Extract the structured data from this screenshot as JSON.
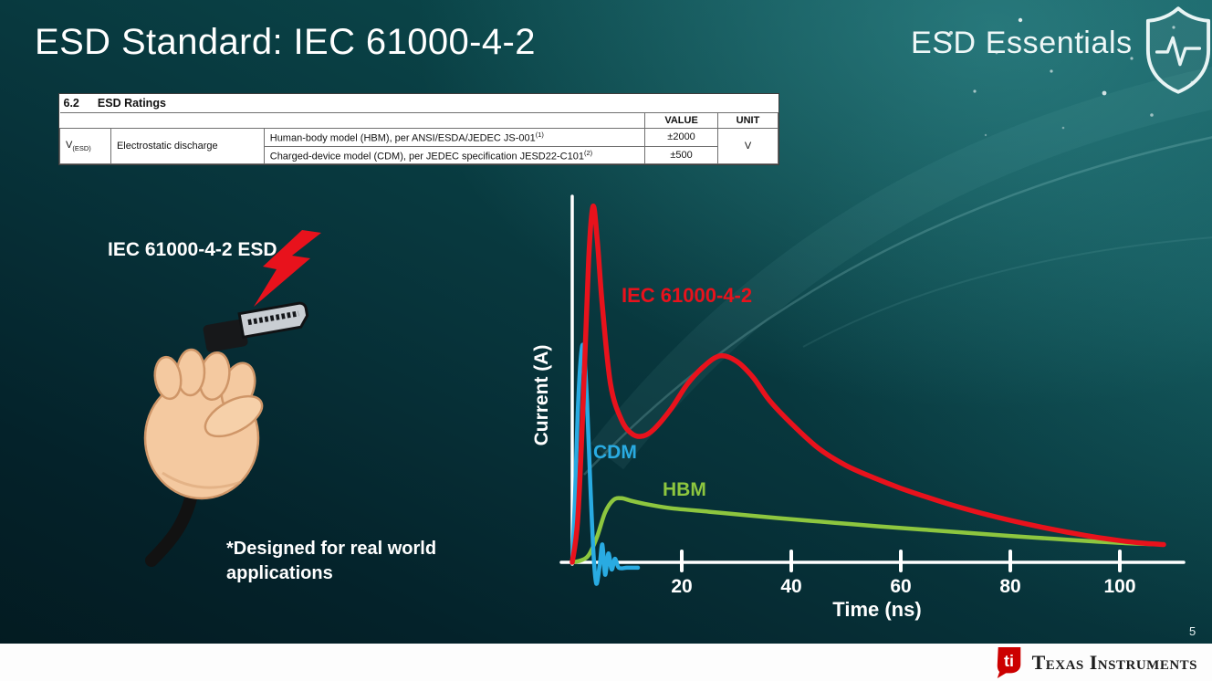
{
  "header": {
    "title": "ESD Standard: IEC 61000-4-2",
    "brand": "ESD Essentials"
  },
  "ratings_table": {
    "section": "6.2",
    "section_title": "ESD Ratings",
    "col_value": "VALUE",
    "col_unit": "UNIT",
    "param_symbol": "V",
    "param_sub": "(ESD)",
    "param_desc": "Electrostatic discharge",
    "rows": [
      {
        "desc": "Human-body model (HBM), per ANSI/ESDA/JEDEC JS-001",
        "sup": "(1)",
        "value": "±2000"
      },
      {
        "desc": "Charged-device model (CDM), per JEDEC specification JESD22-C101",
        "sup": "(2)",
        "value": "±500"
      }
    ],
    "unit": "V"
  },
  "left": {
    "label": "IEC 61000-4-2 ESD",
    "note_line1": "*Designed for real world",
    "note_line2": "applications"
  },
  "chart_data": {
    "type": "line",
    "xlabel": "Time (ns)",
    "ylabel": "Current (A)",
    "x_ticks": [
      20,
      40,
      60,
      80,
      100
    ],
    "x_range": [
      0,
      111
    ],
    "y_unit": "relative amplitude (no y tick labels shown; IEC peak = 1.0)",
    "grid": false,
    "legend": "inline curve labels",
    "series": [
      {
        "name": "IEC 61000-4-2",
        "color": "#e8121c",
        "points": [
          [
            0,
            0
          ],
          [
            1,
            0.12
          ],
          [
            2,
            0.45
          ],
          [
            3,
            0.85
          ],
          [
            3.8,
            1.0
          ],
          [
            4.6,
            0.9
          ],
          [
            5.5,
            0.72
          ],
          [
            7,
            0.5
          ],
          [
            9,
            0.4
          ],
          [
            11,
            0.36
          ],
          [
            13,
            0.355
          ],
          [
            15,
            0.375
          ],
          [
            18,
            0.43
          ],
          [
            21,
            0.5
          ],
          [
            24,
            0.55
          ],
          [
            27,
            0.58
          ],
          [
            30,
            0.565
          ],
          [
            33,
            0.52
          ],
          [
            36,
            0.455
          ],
          [
            40,
            0.39
          ],
          [
            45,
            0.32
          ],
          [
            50,
            0.272
          ],
          [
            55,
            0.238
          ],
          [
            60,
            0.208
          ],
          [
            65,
            0.182
          ],
          [
            70,
            0.158
          ],
          [
            75,
            0.137
          ],
          [
            80,
            0.118
          ],
          [
            85,
            0.101
          ],
          [
            90,
            0.086
          ],
          [
            95,
            0.072
          ],
          [
            100,
            0.061
          ],
          [
            104,
            0.054
          ],
          [
            108,
            0.05
          ]
        ]
      },
      {
        "name": "CDM",
        "color": "#29abe2",
        "points": [
          [
            0,
            0
          ],
          [
            0.5,
            0.18
          ],
          [
            1,
            0.42
          ],
          [
            1.6,
            0.58
          ],
          [
            2.1,
            0.6
          ],
          [
            2.7,
            0.45
          ],
          [
            3.3,
            0.22
          ],
          [
            3.9,
            0.02
          ],
          [
            4.4,
            -0.06
          ],
          [
            5,
            -0.01
          ],
          [
            5.5,
            0.05
          ],
          [
            6,
            -0.035
          ],
          [
            6.6,
            0.025
          ],
          [
            7.2,
            -0.02
          ],
          [
            7.8,
            0.01
          ],
          [
            8.5,
            -0.015
          ],
          [
            10,
            -0.015
          ],
          [
            12,
            -0.015
          ]
        ]
      },
      {
        "name": "HBM",
        "color": "#8dc63f",
        "points": [
          [
            0,
            0
          ],
          [
            1.5,
            0.005
          ],
          [
            3,
            0.02
          ],
          [
            4.5,
            0.07
          ],
          [
            6,
            0.14
          ],
          [
            7.5,
            0.175
          ],
          [
            9,
            0.18
          ],
          [
            11,
            0.172
          ],
          [
            14,
            0.162
          ],
          [
            18,
            0.152
          ],
          [
            25,
            0.142
          ],
          [
            32,
            0.132
          ],
          [
            40,
            0.121
          ],
          [
            48,
            0.111
          ],
          [
            56,
            0.101
          ],
          [
            64,
            0.092
          ],
          [
            72,
            0.083
          ],
          [
            80,
            0.074
          ],
          [
            88,
            0.066
          ],
          [
            96,
            0.058
          ],
          [
            102,
            0.053
          ],
          [
            108,
            0.05
          ]
        ]
      }
    ]
  },
  "footer": {
    "page_number": "5",
    "logo_text": "Texas Instruments",
    "logo_glyph": "ti"
  },
  "colors": {
    "red": "#e8121c",
    "cdm_blue": "#29abe2",
    "hbm_green": "#8dc63f",
    "background_teal": "#0a4347",
    "ti_red": "#cc0000"
  }
}
